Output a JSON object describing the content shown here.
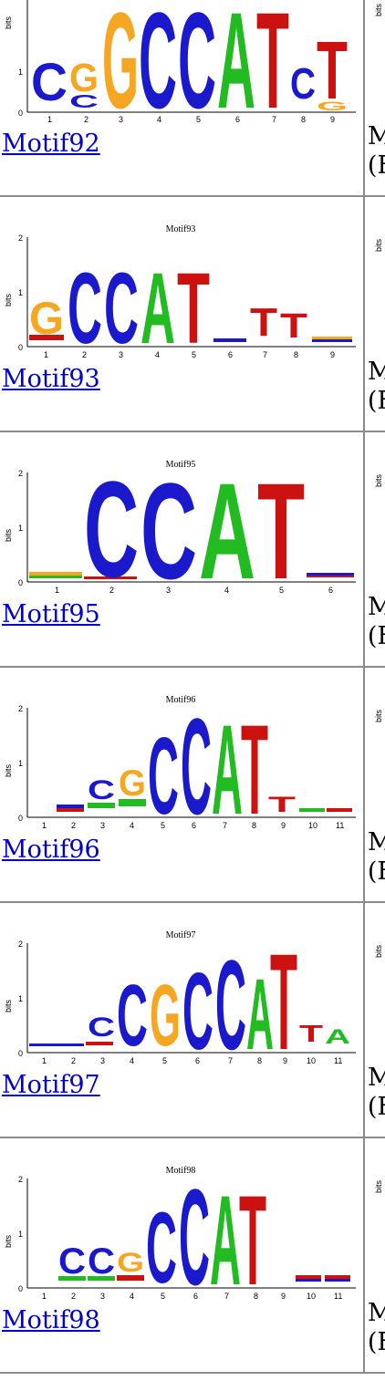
{
  "motifs": [
    {
      "id": "motif92",
      "label": "Motif92",
      "title": "",
      "right_line1": "M",
      "right_line2": "(F",
      "ticks": [
        "1",
        "2",
        "3",
        "4",
        "5",
        "6",
        "7",
        "8",
        "9"
      ],
      "colors": {
        "A": "#22bb22",
        "C": "#1a1acc",
        "G": "#f5a623",
        "T": "#cc1111"
      }
    },
    {
      "id": "motif93",
      "label": "Motif93",
      "title": "Motif93",
      "right_line1": "M",
      "right_line2": "(F",
      "ticks": [
        "1",
        "2",
        "3",
        "4",
        "5",
        "6",
        "7",
        "8",
        "9"
      ]
    },
    {
      "id": "motif95",
      "label": "Motif95",
      "title": "Motif95",
      "right_line1": "M",
      "right_line2": "(F",
      "ticks": [
        "1",
        "2",
        "3",
        "4",
        "5",
        "6"
      ]
    },
    {
      "id": "motif96",
      "label": "Motif96",
      "title": "Motif96",
      "right_line1": "M",
      "right_line2": "(F",
      "ticks": [
        "1",
        "2",
        "3",
        "4",
        "5",
        "6",
        "7",
        "8",
        "9",
        "10",
        "11"
      ]
    },
    {
      "id": "motif97",
      "label": "Motif97",
      "title": "Motif97",
      "right_line1": "M",
      "right_line2": "(F",
      "ticks": [
        "1",
        "2",
        "3",
        "4",
        "5",
        "6",
        "7",
        "8",
        "9",
        "10",
        "11"
      ]
    },
    {
      "id": "motif98",
      "label": "Motif98",
      "title": "Motif98",
      "right_line1": "M",
      "right_line2": "(F",
      "ticks": [
        "1",
        "2",
        "3",
        "4",
        "5",
        "6",
        "7",
        "8",
        "9",
        "10",
        "11"
      ]
    }
  ],
  "axis": {
    "ylabel": "bits",
    "y0": "0",
    "y1": "1",
    "y2": "2"
  }
}
